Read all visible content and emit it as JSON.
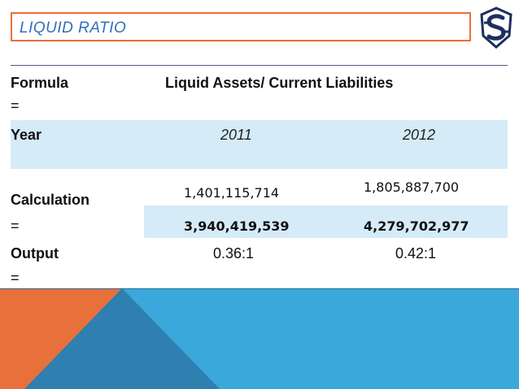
{
  "header": {
    "title": "LIQUID RATIO",
    "logo_icon": "navy-s-shield-logo"
  },
  "table": {
    "formula_label": "Formula",
    "formula_eq": "=",
    "formula_value": "Liquid Assets/ Current Liabilities",
    "year_label": "Year",
    "years": [
      "2011",
      "2012"
    ],
    "calculation_label": "Calculation",
    "calculation_eq": "=",
    "numerators": [
      "1,401,115,714",
      "1,805,887,700"
    ],
    "denominators": [
      "3,940,419,539",
      "4,279,702,977"
    ],
    "output_label": "Output",
    "output_eq": "=",
    "outputs": [
      "0.36:1",
      "0.42:1"
    ]
  },
  "colors": {
    "accent_orange": "#e8703a",
    "title_blue": "#2f6fbf",
    "band_blue": "#d5ebf8",
    "footer_blue": "#3aa8da",
    "footer_dark": "#2f7fb0"
  }
}
